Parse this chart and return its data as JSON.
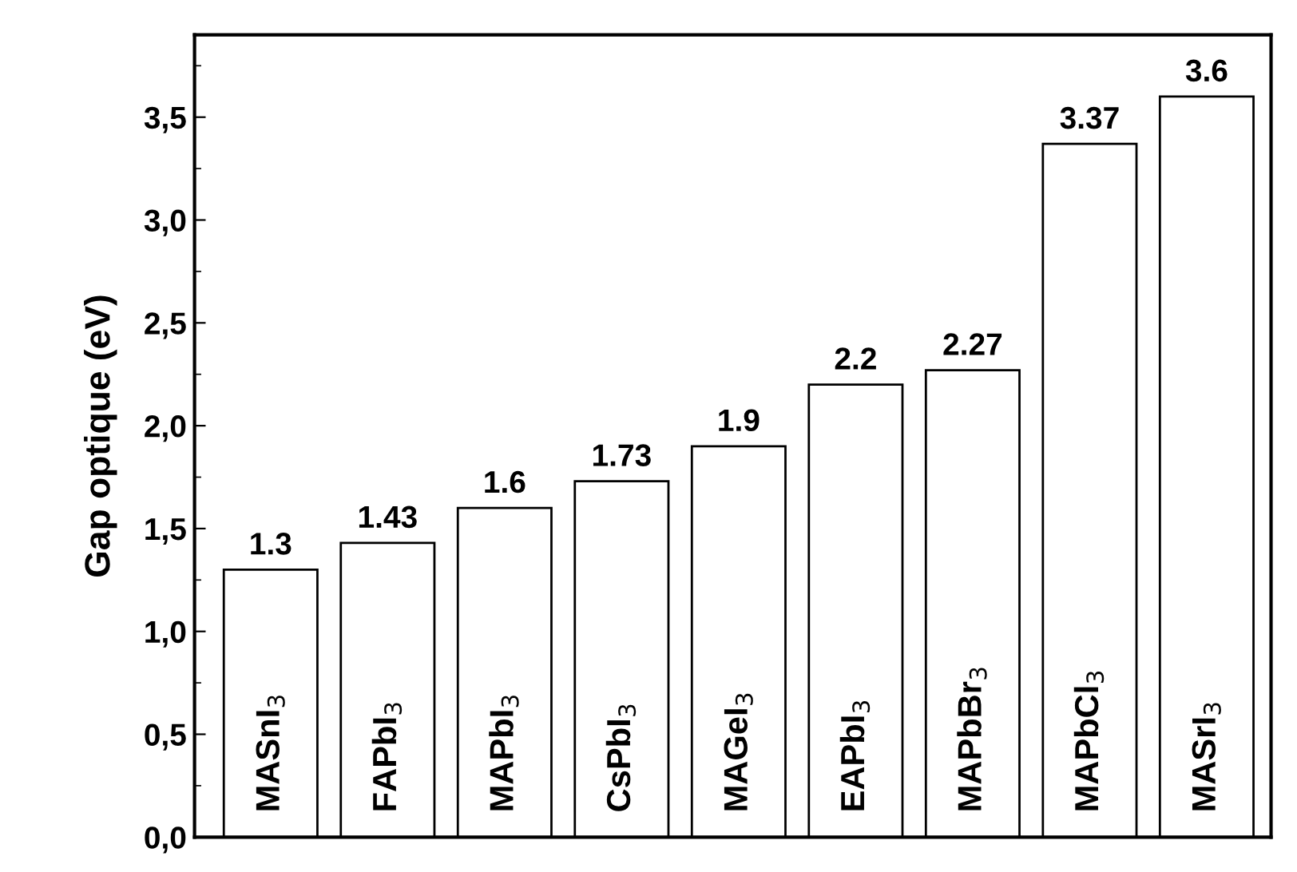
{
  "chart_data": {
    "type": "bar",
    "ylabel": "Gap optique (eV)",
    "categories": [
      "MASnI$_{3}$",
      "FAPbI$_{3}$",
      "MAPbI$_{3}$",
      "CsPbI$_{3}$",
      "MAGeI$_{3}$",
      "EAPbI$_{3}$",
      "MAPbBr$_{3}$",
      "MAPbCl$_{3}$",
      "MASrI$_{3}$"
    ],
    "values": [
      1.3,
      1.43,
      1.6,
      1.73,
      1.9,
      2.2,
      2.27,
      3.37,
      3.6
    ],
    "color": "#ffffff",
    "ylim": [
      0,
      3.9
    ],
    "yticks": [
      {
        "value": 0,
        "label": "0,0"
      },
      {
        "value": 0.5,
        "label": "0,5"
      },
      {
        "value": 1,
        "label": "1,0"
      },
      {
        "value": 1.5,
        "label": "1,5"
      },
      {
        "value": 2,
        "label": "2,0"
      },
      {
        "value": 2.5,
        "label": "2,5"
      },
      {
        "value": 3,
        "label": "3,0"
      },
      {
        "value": 3.5,
        "label": "3,5"
      }
    ],
    "data_labels": true,
    "grid": false,
    "legend": false
  }
}
